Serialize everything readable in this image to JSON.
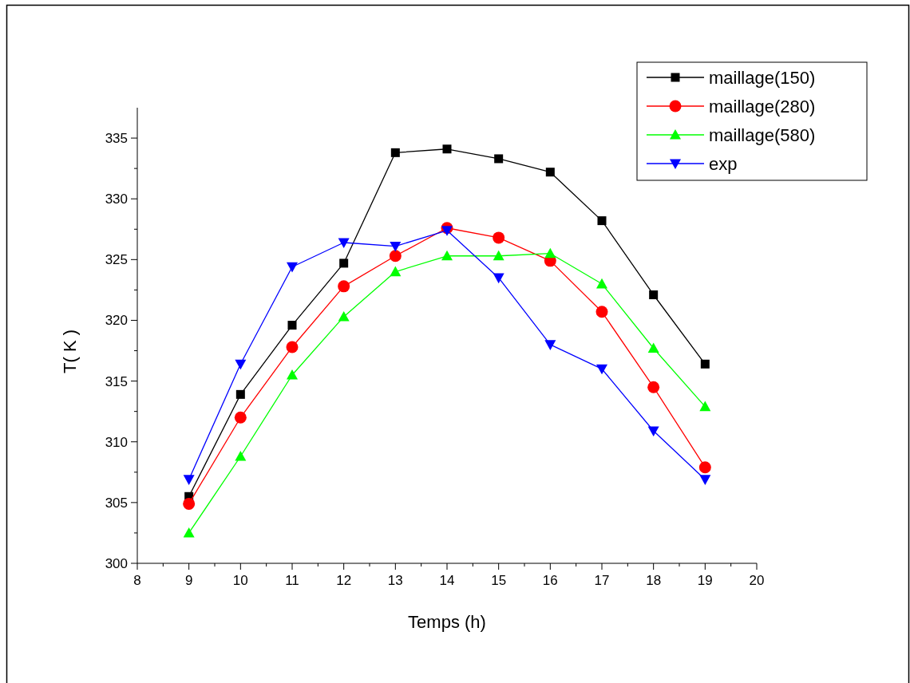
{
  "chart_data": {
    "type": "line",
    "xlabel": "Temps (h)",
    "ylabel": "T( K )",
    "x": [
      9,
      10,
      11,
      12,
      13,
      14,
      15,
      16,
      17,
      18,
      19
    ],
    "series": [
      {
        "name": "maillage(150)",
        "color": "#000000",
        "marker": "square",
        "values": [
          305.5,
          313.9,
          319.6,
          324.7,
          333.8,
          334.1,
          333.3,
          332.2,
          328.2,
          322.1,
          316.4
        ]
      },
      {
        "name": "maillage(280)",
        "color": "#ff0000",
        "marker": "circle",
        "values": [
          304.9,
          312.0,
          317.8,
          322.8,
          325.3,
          327.6,
          326.8,
          324.9,
          320.7,
          314.5,
          307.9
        ]
      },
      {
        "name": "maillage(580)",
        "color": "#00ff00",
        "marker": "triangle",
        "values": [
          302.5,
          308.8,
          315.5,
          320.3,
          324.0,
          325.3,
          325.3,
          325.5,
          323.0,
          317.7,
          312.9
        ]
      },
      {
        "name": "exp",
        "color": "#0000ff",
        "marker": "triangle-down",
        "values": [
          306.9,
          316.4,
          324.4,
          326.4,
          326.1,
          327.4,
          323.5,
          318.0,
          316.0,
          310.9,
          306.9
        ]
      }
    ],
    "xlim": [
      8,
      20
    ],
    "xticks": [
      8,
      {
        "value": 8.5,
        "label": null
      },
      9,
      {
        "value": 9.5,
        "label": null
      },
      10,
      {
        "value": 10.5,
        "label": null
      },
      11,
      {
        "value": 11.5,
        "label": null
      },
      12,
      {
        "value": 12.5,
        "label": null
      },
      13,
      {
        "value": 13.5,
        "label": null
      },
      14,
      {
        "value": 14.5,
        "label": null
      },
      15,
      {
        "value": 15.5,
        "label": null
      },
      16,
      {
        "value": 16.5,
        "label": null
      },
      17,
      {
        "value": 17.5,
        "label": null
      },
      18,
      {
        "value": 18.5,
        "label": null
      },
      19,
      {
        "value": 19.5,
        "label": null
      },
      20
    ],
    "ylim": [
      300,
      337.5
    ],
    "yticks": [
      300,
      {
        "value": 302.5,
        "label": null
      },
      305,
      {
        "value": 307.5,
        "label": null
      },
      310,
      {
        "value": 312.5,
        "label": null
      },
      315,
      {
        "value": 317.5,
        "label": null
      },
      320,
      {
        "value": 322.5,
        "label": null
      },
      325,
      {
        "value": 327.5,
        "label": null
      },
      330,
      {
        "value": 332.5,
        "label": null
      },
      335
    ],
    "grid": false,
    "legend": "top right",
    "line_style": "solid"
  }
}
